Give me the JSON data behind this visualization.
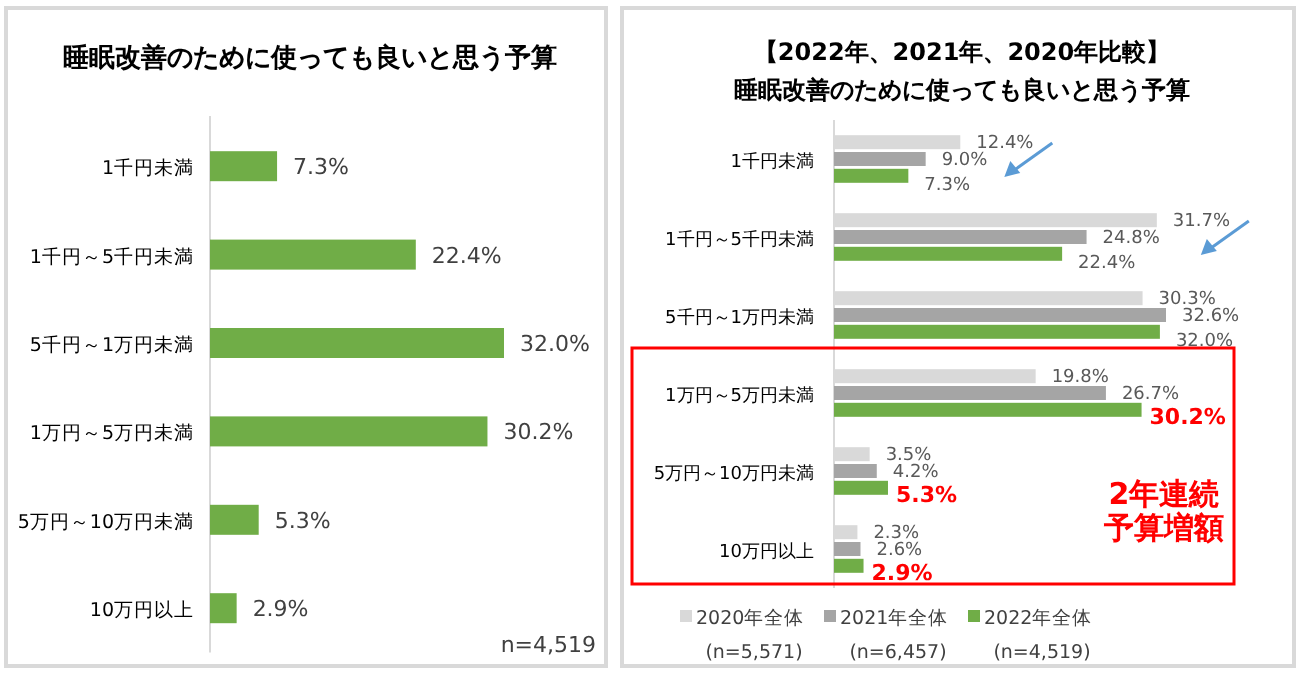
{
  "chart_data": [
    {
      "type": "bar",
      "orientation": "horizontal",
      "title": "睡眠改善のために使っても良いと思う予算",
      "categories": [
        "1千円未満",
        "1千円～5千円未満",
        "5千円～1万円未満",
        "1万円～5万円未満",
        "5万円～10万円未満",
        "10万円以上"
      ],
      "values": [
        7.3,
        22.4,
        32.0,
        30.2,
        5.3,
        2.9
      ],
      "value_labels": [
        "7.3%",
        "22.4%",
        "32.0%",
        "30.2%",
        "5.3%",
        "2.9%"
      ],
      "color": "#70ad47",
      "annotations": [
        "n=4,519"
      ]
    },
    {
      "type": "bar",
      "orientation": "horizontal",
      "title": "【2022年、2021年、2020年比較】",
      "subtitle": "睡眠改善のために使っても良いと思う予算",
      "categories": [
        "1千円未満",
        "1千円～5千円未満",
        "5千円～1万円未満",
        "1万円～5万円未満",
        "5万円～10万円未満",
        "10万円以上"
      ],
      "series": [
        {
          "name": "2020年全体",
          "color": "#d9d9d9",
          "values": [
            12.4,
            31.7,
            30.3,
            19.8,
            3.5,
            2.3
          ],
          "value_labels": [
            "12.4%",
            "31.7%",
            "30.3%",
            "19.8%",
            "3.5%",
            "2.3%"
          ]
        },
        {
          "name": "2021年全体",
          "color": "#a5a5a5",
          "values": [
            9.0,
            24.8,
            32.6,
            26.7,
            4.2,
            2.6
          ],
          "value_labels": [
            "9.0%",
            "24.8%",
            "32.6%",
            "26.7%",
            "4.2%",
            "2.6%"
          ]
        },
        {
          "name": "2022年全体",
          "color": "#70ad47",
          "values": [
            7.3,
            22.4,
            32.0,
            30.2,
            5.3,
            2.9
          ],
          "value_labels": [
            "7.3%",
            "22.4%",
            "32.0%",
            "30.2%",
            "5.3%",
            "2.9%"
          ]
        }
      ],
      "legend": "bottom",
      "annotations": [
        "(n=5,571)",
        "(n=6,457)",
        "(n=4,519)",
        "2年連続予算増額"
      ]
    }
  ]
}
